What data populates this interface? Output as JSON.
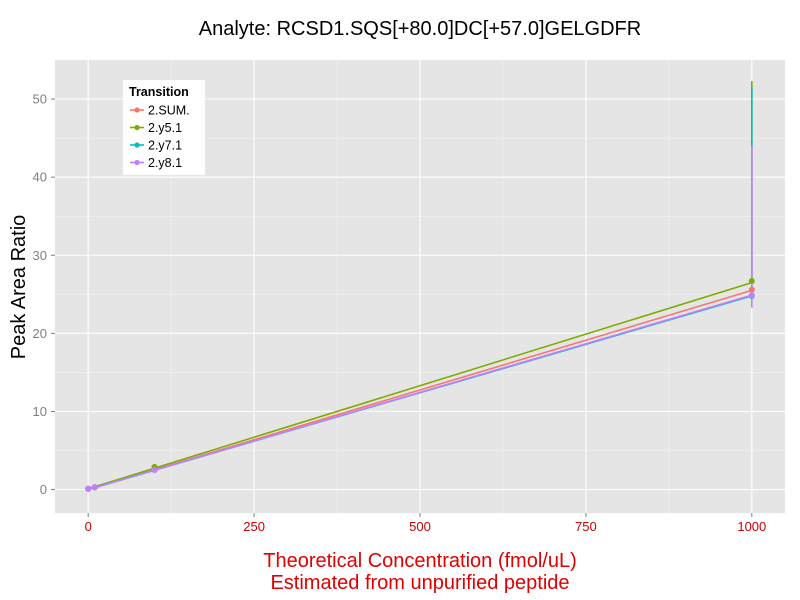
{
  "chart_data": {
    "type": "line",
    "title": "Analyte: RCSD1.SQS[+80.0]DC[+57.0]GELGDFR",
    "xlabel": [
      "Theoretical Concentration (fmol/uL)",
      "Estimated from unpurified peptide"
    ],
    "ylabel": "Peak Area Ratio",
    "xlim": [
      -50,
      1050
    ],
    "ylim": [
      -3,
      55
    ],
    "x_ticks": [
      0,
      250,
      500,
      750,
      1000
    ],
    "y_ticks": [
      0,
      10,
      20,
      30,
      40,
      50
    ],
    "grid": true,
    "legend": {
      "title": "Transition",
      "position": "top-left"
    },
    "series": [
      {
        "name": "2.SUM.",
        "color": "#F8766D",
        "points": [
          [
            0,
            0.1
          ],
          [
            10,
            0.3
          ],
          [
            100,
            2.6
          ],
          [
            1000,
            25.6
          ]
        ],
        "fit": [
          [
            0,
            0.0
          ],
          [
            1000,
            25.5
          ]
        ],
        "errorbar": null
      },
      {
        "name": "2.y5.1",
        "color": "#7CAE00",
        "points": [
          [
            0,
            0.1
          ],
          [
            10,
            0.3
          ],
          [
            100,
            2.9
          ],
          [
            1000,
            26.7
          ]
        ],
        "fit": [
          [
            0,
            0.1
          ],
          [
            1000,
            26.5
          ]
        ],
        "errorbar": {
          "x": 1000,
          "ymin": 26.7,
          "ymax": 52.3
        }
      },
      {
        "name": "2.y7.1",
        "color": "#00BFC4",
        "points": [
          [
            0,
            0.1
          ],
          [
            10,
            0.3
          ],
          [
            100,
            2.5
          ],
          [
            1000,
            24.8
          ]
        ],
        "fit": [
          [
            0,
            0.0
          ],
          [
            1000,
            24.8
          ]
        ],
        "errorbar": {
          "x": 1000,
          "ymin": 24.8,
          "ymax": 51.5
        }
      },
      {
        "name": "2.y8.1",
        "color": "#C77CFF",
        "points": [
          [
            0,
            0.1
          ],
          [
            10,
            0.3
          ],
          [
            100,
            2.5
          ],
          [
            1000,
            24.9
          ]
        ],
        "fit": [
          [
            0,
            0.0
          ],
          [
            1000,
            24.9
          ]
        ],
        "errorbar": {
          "x": 1000,
          "ymin": 23.3,
          "ymax": 44.0
        }
      }
    ]
  }
}
